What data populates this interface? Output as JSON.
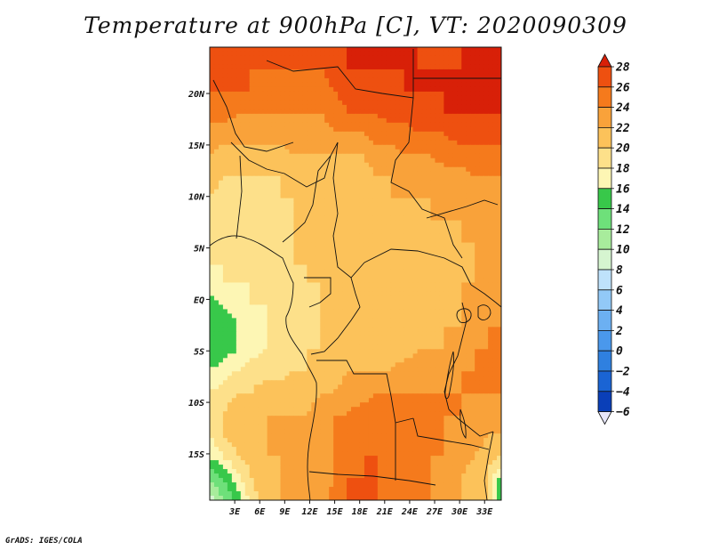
{
  "title": "Temperature at 900hPa [C], VT: 2020090309",
  "credit": "GrADS: IGES/COLA",
  "chart_data": {
    "type": "heatmap",
    "title": "Temperature at 900hPa [C], VT: 2020090309",
    "variable": "Temperature at 900hPa",
    "unit": "C",
    "valid_time": "2020090309",
    "x_axis": {
      "range": [
        0,
        35
      ],
      "ticks": [
        3,
        6,
        9,
        12,
        15,
        18,
        21,
        24,
        27,
        30,
        33
      ],
      "tick_labels": [
        "3E",
        "6E",
        "9E",
        "12E",
        "15E",
        "18E",
        "21E",
        "24E",
        "27E",
        "30E",
        "33E"
      ]
    },
    "y_axis": {
      "range": [
        -19.5,
        24.5
      ],
      "ticks": [
        20,
        15,
        10,
        5,
        0,
        -5,
        -10,
        -15
      ],
      "tick_labels": [
        "20N",
        "15N",
        "10N",
        "5N",
        "EQ",
        "5S",
        "10S",
        "15S"
      ]
    },
    "colorbar": {
      "levels": [
        -6,
        -4,
        -2,
        0,
        2,
        4,
        6,
        8,
        10,
        12,
        14,
        16,
        18,
        20,
        22,
        24,
        26,
        28
      ],
      "colors": [
        "#0b0b6e",
        "#0a3fb8",
        "#1a64d4",
        "#2f80e0",
        "#4a98ec",
        "#6cb0f2",
        "#92c9f7",
        "#bfe2fb",
        "#d6f5d0",
        "#a8ec9c",
        "#6ee07a",
        "#38c84a",
        "#fdf6b4",
        "#fde08a",
        "#fcc25a",
        "#f9a23a",
        "#f57a1c",
        "#ee5010",
        "#d82008"
      ]
    },
    "field_rows": [
      [
        27,
        27,
        27,
        27,
        27,
        27,
        26,
        27,
        27,
        27,
        28,
        28,
        28,
        28,
        28,
        28,
        27,
        27,
        28,
        28,
        28,
        28
      ],
      [
        27,
        27,
        27,
        26,
        26,
        26,
        26,
        26,
        26,
        27,
        28,
        28,
        28,
        28,
        28,
        28,
        28,
        28,
        28,
        28,
        28,
        28
      ],
      [
        26,
        26,
        26,
        26,
        25,
        25,
        25,
        25,
        25,
        26,
        27,
        27,
        27,
        27,
        28,
        28,
        28,
        28,
        28,
        28,
        28,
        28
      ],
      [
        25,
        25,
        24,
        24,
        24,
        24,
        24,
        24,
        24,
        25,
        26,
        26,
        26,
        27,
        27,
        27,
        27,
        28,
        28,
        28,
        28,
        28
      ],
      [
        23,
        23,
        23,
        23,
        23,
        23,
        23,
        23,
        23,
        24,
        24,
        24,
        25,
        25,
        25,
        26,
        26,
        26,
        27,
        27,
        27,
        27
      ],
      [
        22,
        21,
        21,
        21,
        21,
        21,
        22,
        22,
        22,
        22,
        22,
        22,
        23,
        23,
        24,
        24,
        24,
        25,
        25,
        25,
        25,
        25
      ],
      [
        21,
        20,
        20,
        20,
        20,
        20,
        20,
        21,
        21,
        21,
        21,
        21,
        22,
        22,
        22,
        22,
        23,
        23,
        23,
        24,
        24,
        24
      ],
      [
        20,
        19,
        19,
        19,
        19,
        20,
        20,
        20,
        20,
        21,
        21,
        21,
        21,
        22,
        22,
        22,
        22,
        22,
        23,
        23,
        23,
        23
      ],
      [
        20,
        19,
        19,
        19,
        19,
        19,
        20,
        20,
        20,
        20,
        21,
        21,
        21,
        21,
        21,
        21,
        22,
        22,
        22,
        22,
        23,
        23
      ],
      [
        19,
        19,
        19,
        19,
        19,
        19,
        20,
        20,
        20,
        20,
        20,
        21,
        21,
        21,
        21,
        21,
        21,
        21,
        22,
        22,
        22,
        22
      ],
      [
        18,
        18,
        19,
        19,
        19,
        19,
        20,
        20,
        20,
        20,
        20,
        20,
        20,
        21,
        21,
        21,
        21,
        21,
        21,
        22,
        22,
        22
      ],
      [
        17,
        18,
        18,
        18,
        19,
        19,
        19,
        20,
        20,
        20,
        20,
        20,
        20,
        20,
        21,
        21,
        21,
        21,
        22,
        22,
        23,
        23
      ],
      [
        15,
        16,
        17,
        18,
        18,
        18,
        19,
        19,
        20,
        20,
        20,
        20,
        20,
        21,
        21,
        21,
        21,
        21,
        22,
        23,
        24,
        23
      ],
      [
        14,
        14,
        16,
        17,
        18,
        18,
        19,
        19,
        20,
        20,
        20,
        20,
        20,
        21,
        21,
        21,
        21,
        22,
        22,
        23,
        24,
        24
      ],
      [
        14,
        15,
        16,
        17,
        18,
        18,
        19,
        20,
        20,
        20,
        21,
        21,
        21,
        21,
        21,
        22,
        22,
        22,
        23,
        24,
        24,
        24
      ],
      [
        16,
        17,
        18,
        19,
        19,
        19,
        20,
        20,
        21,
        21,
        22,
        22,
        22,
        22,
        23,
        23,
        23,
        23,
        24,
        24,
        25,
        24
      ],
      [
        18,
        19,
        20,
        20,
        21,
        21,
        21,
        21,
        22,
        22,
        23,
        23,
        24,
        24,
        24,
        24,
        24,
        24,
        24,
        24,
        24,
        24
      ],
      [
        19,
        20,
        21,
        21,
        22,
        22,
        22,
        22,
        23,
        24,
        24,
        25,
        25,
        25,
        25,
        25,
        24,
        24,
        24,
        23,
        23,
        23
      ],
      [
        18,
        20,
        21,
        22,
        22,
        22,
        22,
        22,
        23,
        24,
        25,
        25,
        25,
        25,
        25,
        25,
        24,
        24,
        23,
        23,
        22,
        22
      ],
      [
        16,
        18,
        20,
        21,
        22,
        22,
        22,
        22,
        23,
        24,
        25,
        26,
        26,
        25,
        25,
        25,
        24,
        24,
        23,
        22,
        21,
        20
      ],
      [
        12,
        14,
        17,
        20,
        21,
        22,
        22,
        22,
        23,
        24,
        26,
        26,
        26,
        25,
        25,
        25,
        24,
        23,
        22,
        21,
        20,
        15
      ],
      [
        9,
        12,
        15,
        19,
        21,
        22,
        22,
        22,
        23,
        25,
        26,
        26,
        26,
        26,
        25,
        25,
        24,
        23,
        22,
        21,
        20,
        14
      ]
    ],
    "field_note": "approximate gridded reading of the shaded 900hPa temperature (deg C), rows from north to south, columns west to east"
  }
}
